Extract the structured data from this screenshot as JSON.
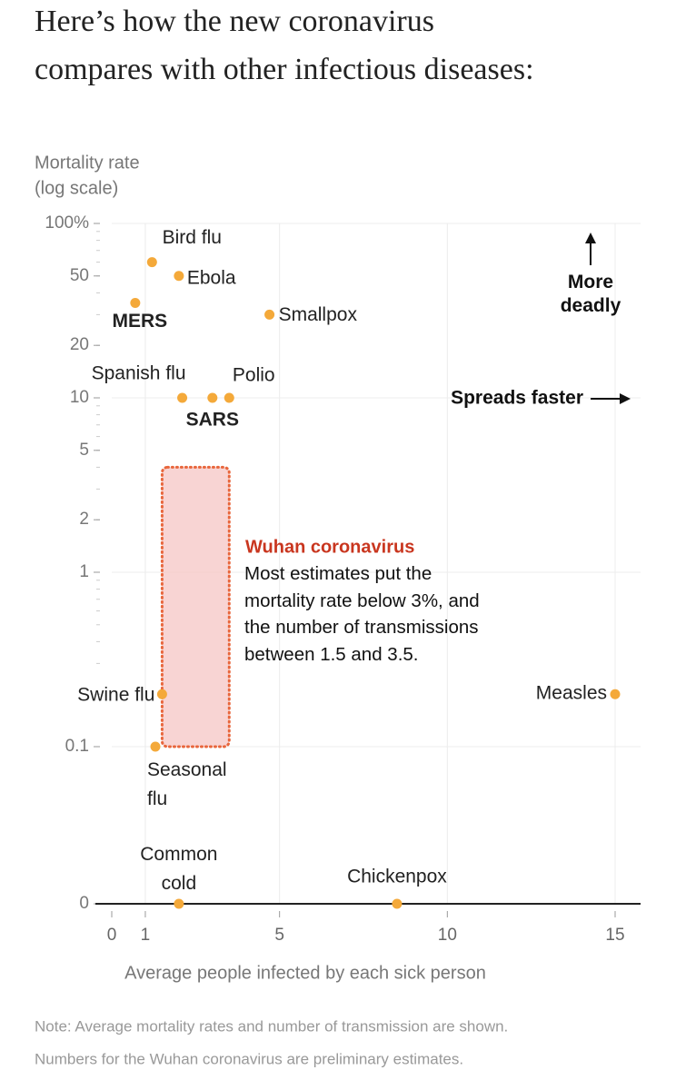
{
  "chart_data": {
    "type": "scatter",
    "title": [
      "Here’s how the new coronavirus",
      "compares with other infectious diseases:"
    ],
    "y_label": [
      "Mortality rate",
      "(log scale)"
    ],
    "x_label": "Average people infected by each sick person",
    "note": [
      "Note: Average mortality rates and number of transmission are shown.",
      "Numbers for the Wuhan coronavirus are preliminary estimates."
    ],
    "labels": [
      "Bird flu",
      "Ebola",
      "MERS",
      "Smallpox",
      "Spanish flu",
      "SARS",
      "Polio",
      "Swine flu",
      "Seasonal flu",
      "Measles",
      "Common cold",
      "Chickenpox"
    ],
    "bold": [
      false,
      false,
      true,
      false,
      false,
      true,
      false,
      false,
      false,
      false,
      false,
      false
    ],
    "x": [
      1.2,
      2.0,
      0.7,
      4.7,
      2.1,
      3.0,
      3.5,
      1.5,
      1.3,
      15,
      2.0,
      8.5
    ],
    "values": [
      60,
      50,
      35,
      30,
      10,
      10,
      10,
      0.2,
      0.1,
      0.2,
      0,
      0
    ],
    "color": "#f4a93a",
    "log_y": true,
    "grid": true,
    "xlim": [
      0,
      15
    ],
    "ylim": [
      0,
      100
    ],
    "xticks": [
      0,
      1,
      5,
      10,
      15
    ],
    "yticks": [
      {
        "value": 100,
        "label": "100%"
      },
      50,
      20,
      10,
      5,
      2,
      1,
      0.1,
      0
    ],
    "highlight": {
      "x": [
        1.5,
        3.5
      ],
      "y": [
        0.1,
        4
      ],
      "color": "#f5c6c4",
      "border": "#e8663c",
      "title": "Wuhan coronavirus",
      "title_color": "#c9361f",
      "text": "Most estimates put the mortality rate below 3%, and the number of transmissions between 1.5 and 3.5."
    },
    "annotations": {
      "up": "More deadly",
      "right": "Spreads faster"
    }
  }
}
